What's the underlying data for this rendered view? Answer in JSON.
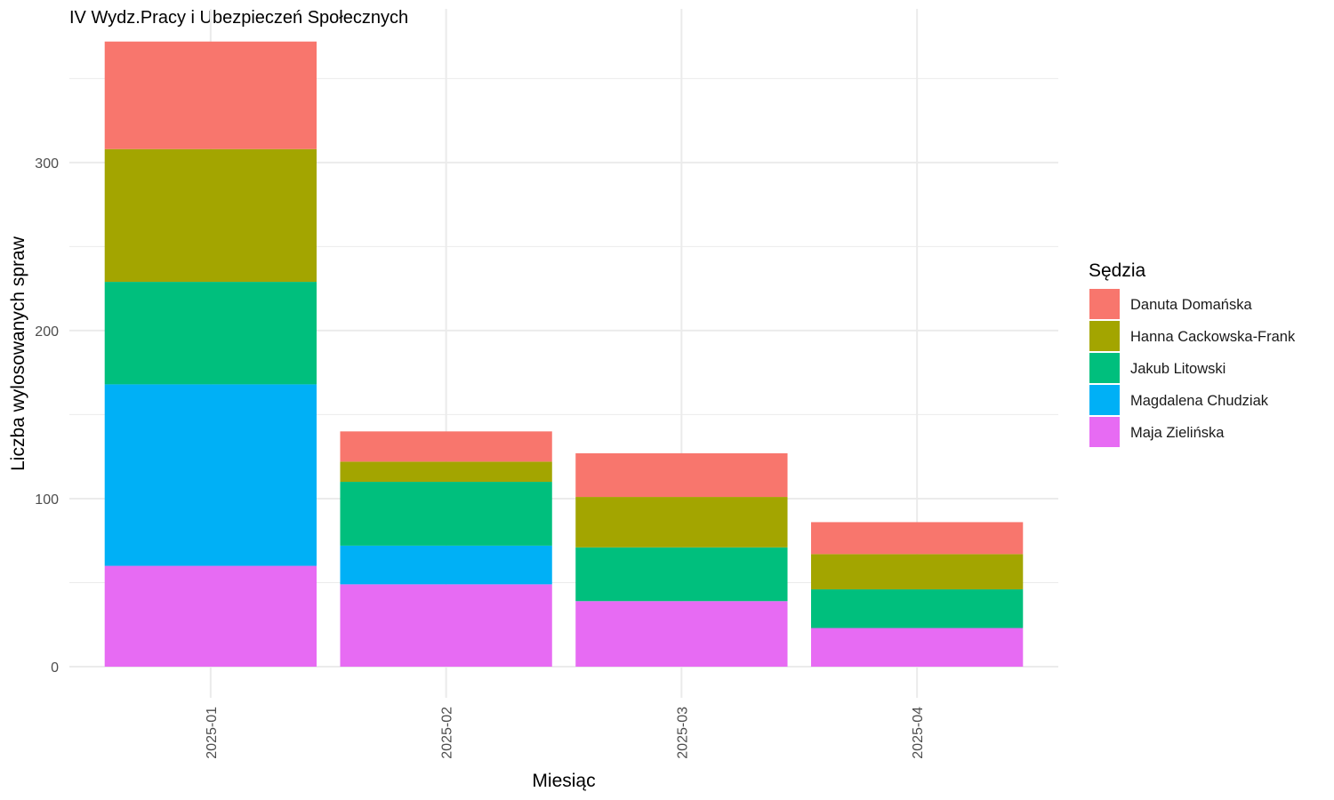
{
  "chart_data": {
    "type": "bar",
    "stacked": true,
    "title": "IV Wydz.Pracy i Ubezpieczeń Społecznych",
    "xlabel": "Miesiąc",
    "ylabel": "Liczba wylosowanych spraw",
    "categories": [
      "2025-01",
      "2025-02",
      "2025-03",
      "2025-04"
    ],
    "ylim": [
      0,
      380
    ],
    "yticks": [
      0,
      100,
      200,
      300
    ],
    "grid": true,
    "legend": {
      "title": "Sędzia",
      "position": "right"
    },
    "stack_order_bottom_to_top": [
      "Maja Zielińska",
      "Magdalena Chudziak",
      "Jakub Litowski",
      "Hanna Cackowska-Frank",
      "Danuta Domańska"
    ],
    "series": [
      {
        "name": "Danuta Domańska",
        "color": "#F8766D",
        "values": [
          64,
          18,
          26,
          19
        ]
      },
      {
        "name": "Hanna Cackowska-Frank",
        "color": "#A3A500",
        "values": [
          79,
          12,
          30,
          21
        ]
      },
      {
        "name": "Jakub Litowski",
        "color": "#00BF7D",
        "values": [
          61,
          38,
          32,
          23
        ]
      },
      {
        "name": "Magdalena Chudziak",
        "color": "#00B0F6",
        "values": [
          108,
          23,
          0,
          0
        ]
      },
      {
        "name": "Maja Zielińska",
        "color": "#E76BF3",
        "values": [
          60,
          49,
          39,
          23
        ]
      }
    ]
  }
}
